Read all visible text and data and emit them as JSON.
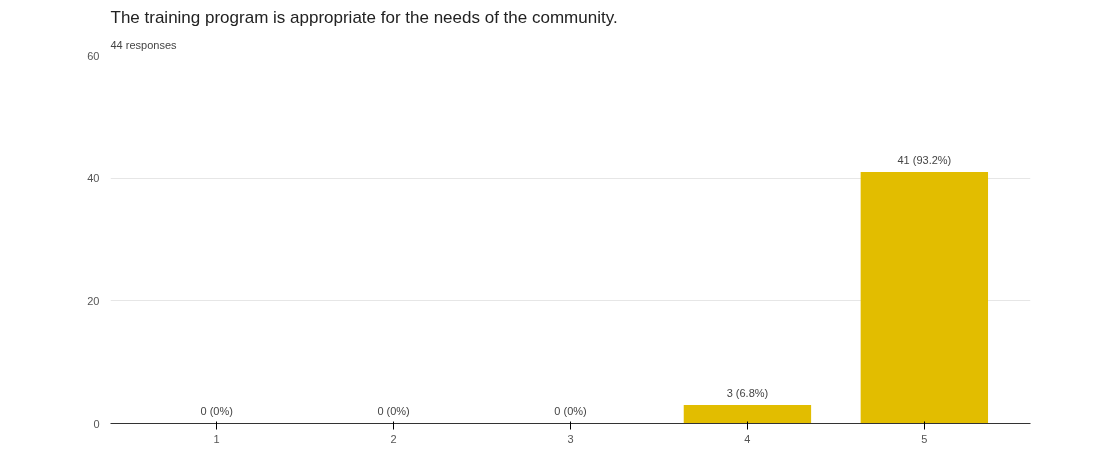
{
  "chart_data": {
    "type": "bar",
    "title": "The training program is appropriate for the needs of the community.",
    "subtitle": "44 responses",
    "categories": [
      "1",
      "2",
      "3",
      "4",
      "5"
    ],
    "values": [
      0,
      0,
      0,
      3,
      41
    ],
    "value_labels": [
      "0 (0%)",
      "0 (0%)",
      "0 (0%)",
      "3 (6.8%)",
      "41 (93.2%)"
    ],
    "color": "#e2bd00",
    "ylim": [
      0,
      60
    ],
    "yticks": [
      0,
      20,
      40,
      60
    ],
    "grid": "y"
  }
}
